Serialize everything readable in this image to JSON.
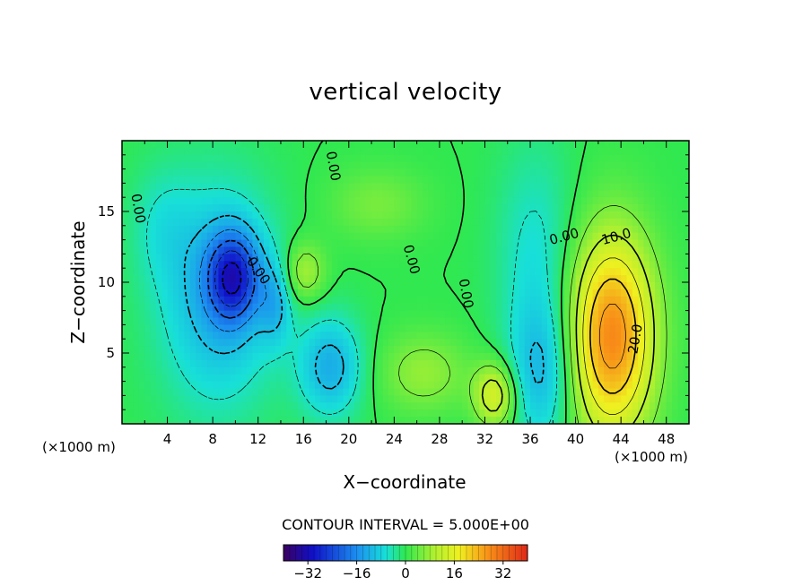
{
  "chart_data": {
    "type": "heatmap",
    "title": "vertical velocity",
    "xlabel": "X−coordinate",
    "ylabel": "Z−coordinate",
    "x_unit": "(×1000 m)",
    "xlim": [
      0,
      50
    ],
    "ylim": [
      0,
      20
    ],
    "x_ticks": [
      4,
      8,
      12,
      16,
      20,
      24,
      28,
      32,
      36,
      40,
      44,
      48
    ],
    "y_ticks": [
      5,
      10,
      15
    ],
    "contour_interval_text": "CONTOUR INTERVAL = 5.000E+00",
    "contour_labels": [
      {
        "text": "0.00",
        "x": 1.4,
        "y": 15.2,
        "angle": 80
      },
      {
        "text": "0.00",
        "x": 18.6,
        "y": 18.2,
        "angle": 80
      },
      {
        "text": "0.00",
        "x": 25.5,
        "y": 11.6,
        "angle": 75
      },
      {
        "text": "0.00",
        "x": 30.3,
        "y": 9.2,
        "angle": 80
      },
      {
        "text": "0.00",
        "x": 39.0,
        "y": 13.2,
        "angle": -15
      },
      {
        "text": "10.0",
        "x": 43.6,
        "y": 13.2,
        "angle": -15
      },
      {
        "text": "20.0",
        "x": 45.3,
        "y": 6.0,
        "angle": -80
      },
      {
        "text": "0.00",
        "x": 12.0,
        "y": 10.8,
        "angle": 55
      }
    ],
    "extrema": [
      {
        "name": "updraft-max",
        "x": 43.2,
        "y": 6.2,
        "value": 28
      },
      {
        "name": "downdraft-min",
        "x": 9.8,
        "y": 10.4,
        "value": -32
      },
      {
        "name": "downdraft-lower",
        "x": 18.4,
        "y": 4.0,
        "value": -12
      },
      {
        "name": "downdraft-right",
        "x": 37.0,
        "y": 3.5,
        "value": -10
      },
      {
        "name": "updraft-small-32",
        "x": 32.9,
        "y": 2.0,
        "value": 14
      },
      {
        "name": "updraft-16",
        "x": 16.1,
        "y": 10.7,
        "value": 9
      },
      {
        "name": "updraft-28",
        "x": 26.6,
        "y": 3.6,
        "value": 7
      }
    ],
    "colorbar": {
      "range": [
        -40,
        40
      ],
      "ticks": [
        -32,
        -16,
        0,
        16,
        32
      ],
      "tick_labels": [
        "−32",
        "−16",
        "0",
        "16",
        "32"
      ]
    }
  }
}
